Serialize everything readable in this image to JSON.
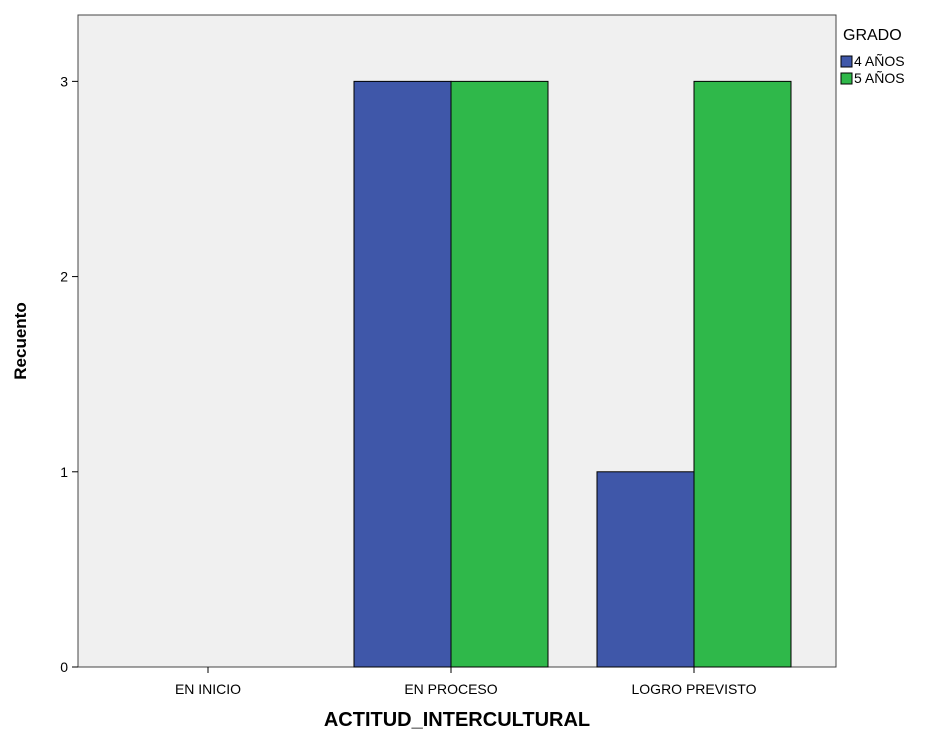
{
  "chart_data": {
    "type": "bar",
    "categories": [
      "EN INICIO",
      "EN PROCESO",
      "LOGRO PREVISTO"
    ],
    "series": [
      {
        "name": "4 AÑOS",
        "values": [
          0,
          3,
          1
        ],
        "color": "#3f57a9"
      },
      {
        "name": "5 AÑOS",
        "values": [
          0,
          3,
          3
        ],
        "color": "#2fb84a"
      }
    ],
    "ylim": [
      0,
      3.34
    ],
    "yticks": [
      "0",
      "1",
      "2",
      "3"
    ],
    "xlabel": "ACTITUD_INTERCULTURAL",
    "ylabel": "Recuento",
    "legend_title": "GRADO",
    "legend_position": "top-right",
    "grid": false,
    "plot_background": "#f0f0f0"
  }
}
